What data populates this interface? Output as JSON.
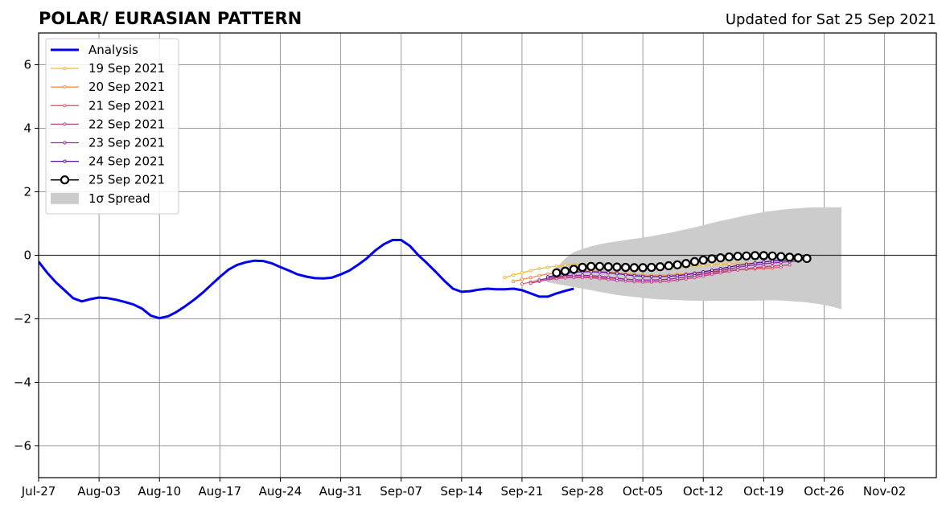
{
  "chart_data": {
    "type": "line",
    "title": "POLAR/ EURASIAN  PATTERN",
    "subtitle": "Updated for Sat 25 Sep 2021",
    "xlabel": "",
    "ylabel": "",
    "xlim": [
      "2021-07-27",
      "2021-11-08"
    ],
    "ylim": [
      -7,
      7
    ],
    "grid": true,
    "legend_position": "top-left",
    "x_tick_labels": [
      "Jul-27",
      "Aug-03",
      "Aug-10",
      "Aug-17",
      "Aug-24",
      "Aug-31",
      "Sep-07",
      "Sep-14",
      "Sep-21",
      "Sep-28",
      "Oct-05",
      "Oct-12",
      "Oct-19",
      "Oct-26",
      "Nov-02"
    ],
    "x_tick_dates": [
      "2021-07-27",
      "2021-08-03",
      "2021-08-10",
      "2021-08-17",
      "2021-08-24",
      "2021-08-31",
      "2021-09-07",
      "2021-09-14",
      "2021-09-21",
      "2021-09-28",
      "2021-10-05",
      "2021-10-12",
      "2021-10-19",
      "2021-10-26",
      "2021-11-02"
    ],
    "y_tick_values": [
      -6,
      -4,
      -2,
      0,
      2,
      4,
      6
    ],
    "y_tick_labels": [
      "−6",
      "−4",
      "−2",
      "0",
      "2",
      "4",
      "6"
    ],
    "analysis": {
      "name": "Analysis",
      "color": "#0000ee",
      "start": "2021-07-27",
      "values": [
        -0.2,
        -0.55,
        -0.85,
        -1.1,
        -1.35,
        -1.45,
        -1.38,
        -1.33,
        -1.35,
        -1.4,
        -1.47,
        -1.55,
        -1.68,
        -1.9,
        -1.98,
        -1.92,
        -1.78,
        -1.6,
        -1.4,
        -1.18,
        -0.93,
        -0.68,
        -0.45,
        -0.3,
        -0.22,
        -0.17,
        -0.18,
        -0.25,
        -0.37,
        -0.48,
        -0.6,
        -0.67,
        -0.72,
        -0.73,
        -0.7,
        -0.6,
        -0.48,
        -0.3,
        -0.1,
        0.15,
        0.35,
        0.48,
        0.48,
        0.3,
        0.0,
        -0.25,
        -0.52,
        -0.8,
        -1.05,
        -1.15,
        -1.13,
        -1.08,
        -1.05,
        -1.07,
        -1.07,
        -1.05,
        -1.1,
        -1.2,
        -1.3,
        -1.3,
        -1.2,
        -1.12,
        -1.05
      ]
    },
    "spread": {
      "name": "1σ Spread",
      "color": "#cccccc",
      "start": "2021-09-24",
      "upper": [
        -0.85,
        -0.4,
        -0.1,
        0.1,
        0.2,
        0.28,
        0.35,
        0.4,
        0.44,
        0.48,
        0.52,
        0.56,
        0.6,
        0.65,
        0.7,
        0.76,
        0.82,
        0.88,
        0.95,
        1.02,
        1.08,
        1.14,
        1.2,
        1.26,
        1.31,
        1.36,
        1.4,
        1.43,
        1.46,
        1.48,
        1.5,
        1.51,
        1.51,
        1.51,
        1.51
      ],
      "lower": [
        -0.85,
        -0.9,
        -0.95,
        -1.0,
        -1.05,
        -1.1,
        -1.15,
        -1.2,
        -1.25,
        -1.28,
        -1.31,
        -1.34,
        -1.37,
        -1.39,
        -1.4,
        -1.41,
        -1.42,
        -1.43,
        -1.43,
        -1.43,
        -1.43,
        -1.43,
        -1.43,
        -1.43,
        -1.43,
        -1.42,
        -1.41,
        -1.42,
        -1.44,
        -1.46,
        -1.48,
        -1.52,
        -1.56,
        -1.62,
        -1.7
      ]
    },
    "series": [
      {
        "name": "19 Sep 2021",
        "color": "#f5b82e",
        "start": "2021-09-19",
        "values": [
          -0.7,
          -0.62,
          -0.55,
          -0.48,
          -0.42,
          -0.38,
          -0.34,
          -0.31,
          -0.29,
          -0.28,
          -0.28,
          -0.29,
          -0.31,
          -0.33,
          -0.36,
          -0.38,
          -0.4,
          -0.41,
          -0.41,
          -0.4,
          -0.38,
          -0.36,
          -0.34,
          -0.32,
          -0.3,
          -0.28,
          -0.27,
          -0.26,
          -0.25,
          -0.25,
          -0.25
        ]
      },
      {
        "name": "20 Sep 2021",
        "color": "#ef8b4b",
        "start": "2021-09-20",
        "values": [
          -0.82,
          -0.76,
          -0.7,
          -0.64,
          -0.59,
          -0.55,
          -0.52,
          -0.5,
          -0.49,
          -0.49,
          -0.5,
          -0.52,
          -0.55,
          -0.58,
          -0.6,
          -0.62,
          -0.63,
          -0.63,
          -0.62,
          -0.6,
          -0.58,
          -0.55,
          -0.52,
          -0.5,
          -0.48,
          -0.46,
          -0.45,
          -0.44,
          -0.43,
          -0.42,
          -0.41
        ]
      },
      {
        "name": "21 Sep 2021",
        "color": "#e15f6e",
        "start": "2021-09-21",
        "values": [
          -0.9,
          -0.84,
          -0.78,
          -0.73,
          -0.7,
          -0.68,
          -0.67,
          -0.67,
          -0.68,
          -0.7,
          -0.72,
          -0.74,
          -0.76,
          -0.77,
          -0.78,
          -0.78,
          -0.77,
          -0.75,
          -0.72,
          -0.68,
          -0.64,
          -0.6,
          -0.56,
          -0.52,
          -0.49,
          -0.46,
          -0.44,
          -0.42,
          -0.4,
          -0.39,
          -0.38
        ]
      },
      {
        "name": "22 Sep 2021",
        "color": "#c0408a",
        "start": "2021-09-22",
        "values": [
          -0.88,
          -0.82,
          -0.77,
          -0.73,
          -0.71,
          -0.7,
          -0.7,
          -0.71,
          -0.73,
          -0.76,
          -0.79,
          -0.81,
          -0.83,
          -0.84,
          -0.84,
          -0.83,
          -0.81,
          -0.78,
          -0.74,
          -0.7,
          -0.65,
          -0.6,
          -0.55,
          -0.5,
          -0.46,
          -0.42,
          -0.39,
          -0.36,
          -0.34,
          -0.32,
          -0.3
        ]
      },
      {
        "name": "23 Sep 2021",
        "color": "#9a28a8",
        "start": "2021-09-23",
        "values": [
          -0.78,
          -0.72,
          -0.67,
          -0.64,
          -0.63,
          -0.63,
          -0.64,
          -0.66,
          -0.69,
          -0.72,
          -0.75,
          -0.77,
          -0.78,
          -0.78,
          -0.77,
          -0.75,
          -0.72,
          -0.68,
          -0.63,
          -0.58,
          -0.53,
          -0.48,
          -0.43,
          -0.38,
          -0.34,
          -0.3,
          -0.27,
          -0.24,
          -0.22,
          -0.2,
          -0.19
        ]
      },
      {
        "name": "24 Sep 2021",
        "color": "#5a0fa0",
        "start": "2021-09-24",
        "values": [
          -0.68,
          -0.62,
          -0.57,
          -0.53,
          -0.52,
          -0.52,
          -0.53,
          -0.55,
          -0.58,
          -0.61,
          -0.64,
          -0.66,
          -0.67,
          -0.67,
          -0.66,
          -0.64,
          -0.61,
          -0.57,
          -0.52,
          -0.47,
          -0.42,
          -0.37,
          -0.32,
          -0.28,
          -0.24,
          -0.21,
          -0.18,
          -0.16,
          -0.15,
          -0.14,
          -0.14
        ]
      },
      {
        "name": "25 Sep 2021",
        "color": "#000000",
        "start": "2021-09-25",
        "values": [
          -0.55,
          -0.5,
          -0.44,
          -0.38,
          -0.35,
          -0.35,
          -0.36,
          -0.37,
          -0.38,
          -0.39,
          -0.39,
          -0.38,
          -0.36,
          -0.33,
          -0.3,
          -0.26,
          -0.2,
          -0.15,
          -0.11,
          -0.08,
          -0.05,
          -0.03,
          -0.02,
          -0.01,
          -0.01,
          -0.02,
          -0.04,
          -0.06,
          -0.08,
          -0.1
        ]
      }
    ],
    "legend": [
      {
        "label": "Analysis",
        "kind": "analysis",
        "color": "#0000ee"
      },
      {
        "label": "19 Sep 2021",
        "kind": "member",
        "color": "#f5b82e"
      },
      {
        "label": "20 Sep 2021",
        "kind": "member",
        "color": "#ef8b4b"
      },
      {
        "label": "21 Sep 2021",
        "kind": "member",
        "color": "#e15f6e"
      },
      {
        "label": "22 Sep 2021",
        "kind": "member",
        "color": "#c0408a"
      },
      {
        "label": "23 Sep 2021",
        "kind": "member",
        "color": "#9a28a8"
      },
      {
        "label": "24 Sep 2021",
        "kind": "member",
        "color": "#5a0fa0"
      },
      {
        "label": "25 Sep 2021",
        "kind": "latest",
        "color": "#000000"
      },
      {
        "label": "1σ Spread",
        "kind": "spread",
        "color": "#cccccc"
      }
    ]
  }
}
